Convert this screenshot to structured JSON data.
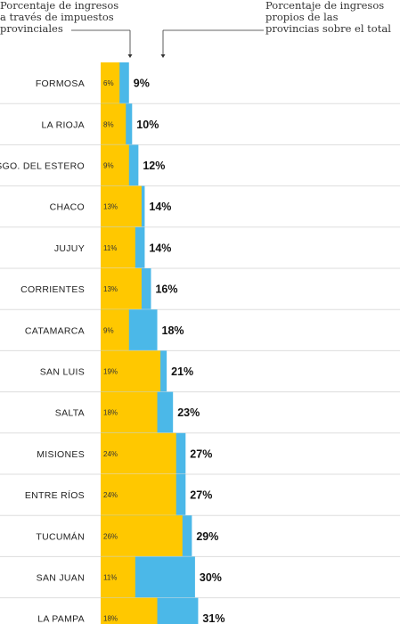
{
  "legend": {
    "left": "Porcentaje de ingresos\na través de impuestos\nprovinciales",
    "right": "Porcentaje de ingresos\npropios de las\nprovincias sobre el total"
  },
  "colors": {
    "tax": "#ffc800",
    "own": "#4bb8e8",
    "divider": "#dddddd",
    "text": "#222222"
  },
  "chart_data": {
    "type": "bar",
    "categories": [
      "FORMOSA",
      "LA RIOJA",
      "SGO. DEL ESTERO",
      "CHACO",
      "JUJUY",
      "CORRIENTES",
      "CATAMARCA",
      "SAN LUIS",
      "SALTA",
      "MISIONES",
      "ENTRE RÍOS",
      "TUCUMÁN",
      "SAN JUAN",
      "LA PAMPA"
    ],
    "series": [
      {
        "name": "Porcentaje de ingresos a través de impuestos provinciales",
        "values": [
          6,
          8,
          9,
          13,
          11,
          13,
          9,
          19,
          18,
          24,
          24,
          26,
          11,
          18
        ]
      },
      {
        "name": "Porcentaje de ingresos propios de las provincias sobre el total",
        "values": [
          9,
          10,
          12,
          14,
          14,
          16,
          18,
          21,
          23,
          27,
          27,
          29,
          30,
          31
        ]
      }
    ],
    "labels_inner": [
      "6%",
      "8%",
      "9%",
      "13%",
      "11%",
      "13%",
      "9%",
      "19%",
      "18%",
      "24%",
      "24%",
      "26%",
      "11%",
      "18%"
    ],
    "labels_total": [
      "9%",
      "10%",
      "12%",
      "14%",
      "14%",
      "16%",
      "18%",
      "21%",
      "23%",
      "27%",
      "27%",
      "29%",
      "30%",
      "31%"
    ]
  }
}
